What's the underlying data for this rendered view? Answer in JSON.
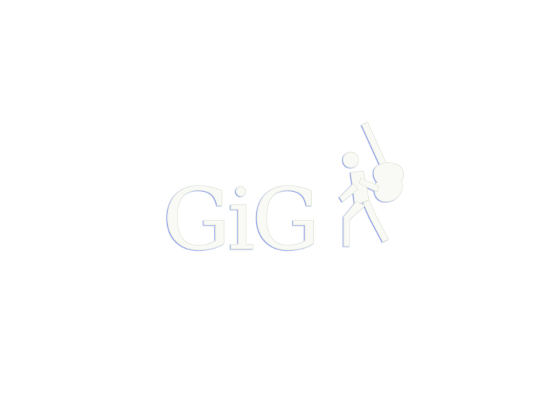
{
  "logo": {
    "wordmark": "GiG",
    "fill_color": "#f9faf6",
    "edge_color": "#2a46d8",
    "icon": "guitar-player-icon"
  }
}
